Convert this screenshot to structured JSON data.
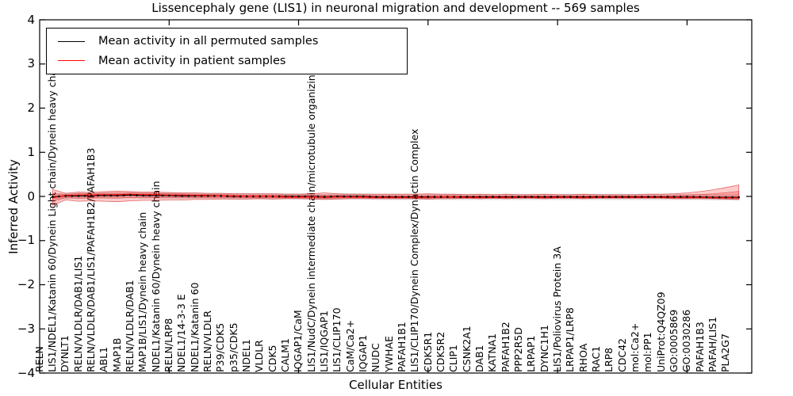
{
  "figure": {
    "title": "Lissencephaly gene (LIS1) in neuronal migration and development -- 569 samples",
    "xlabel": "Cellular Entities",
    "ylabel": "Inferred Activity"
  },
  "chart_data": {
    "type": "line",
    "title": "Lissencephaly gene (LIS1) in neuronal migration and development -- 569 samples",
    "xlabel": "Cellular Entities",
    "ylabel": "Inferred Activity",
    "ylim": [
      -4,
      4
    ],
    "yticks": [
      4,
      3,
      2,
      1,
      0,
      -1,
      -2,
      -3,
      -4
    ],
    "xticks_major": [
      10,
      20,
      30,
      40,
      50
    ],
    "grid": false,
    "legend_position": "upper left",
    "categories": [
      "RELN",
      "LIS1/NDEL1/Katanin 60/Dynein Light chain/Dynein heavy chain",
      "DYNLT1",
      "RELN/VLDLR/DAB1/LIS1",
      "RELN/VLDLR/DAB1/LIS1/PAFAH1B2/PAFAH1B3",
      "ABL1",
      "MAP1B",
      "RELN/VLDLR/DAB1",
      "MAP1B/LIS1/Dynein heavy chain",
      "NDEL1/Katanin 60/Dynein heavy chain",
      "RELN/LRP8",
      "NDEL1/14-3-3 E",
      "NDEL1/Katanin 60",
      "RELN/VLDLR",
      "P39/CDK5",
      "p35/CDK5",
      "NDEL1",
      "VLDLR",
      "CDK5",
      "CALM1",
      "IQGAP1/CaM",
      "LIS1/NudC/Dynein intermediate chain/microtubule organizing center",
      "LIS1/IQGAP1",
      "LIS1/CLIP170",
      "CaM/Ca2+",
      "IQGAP1",
      "NUDC",
      "YWHAE",
      "PAFAH1B1",
      "LIS1/CLIP170/Dynein Complex/Dynactin Complex",
      "CDK5R1",
      "CDK5R2",
      "CLIP1",
      "CSNK2A1",
      "DAB1",
      "KATNA1",
      "PAFAH1B2",
      "PPP2R5D",
      "LRPAP1",
      "DYNC1H1",
      "LIS1/Poliovirus Protein 3A",
      "LRPAP1/LRP8",
      "RHOA",
      "RAC1",
      "LRP8",
      "CDC42",
      "mol:Ca2+",
      "mol:PP1",
      "UniProt:Q4QZ09",
      "GO:0005869",
      "GO:0030286",
      "PAFAH1B3",
      "PAFAH/LIS1",
      "PLA2G7"
    ],
    "series": [
      {
        "name": "Mean activity in all permuted samples",
        "color": "#000000",
        "values": [
          -0.01,
          0.01,
          0.01,
          0.02,
          0.02,
          0.02,
          0.03,
          0.02,
          0.02,
          0.02,
          0.01,
          0.01,
          0.01,
          0.01,
          0.0,
          0.0,
          0.0,
          0.0,
          0.0,
          0.0,
          0.0,
          -0.01,
          0.0,
          0.0,
          0.0,
          -0.01,
          -0.01,
          -0.01,
          -0.01,
          -0.01,
          -0.01,
          -0.01,
          -0.01,
          -0.01,
          -0.01,
          -0.01,
          -0.01,
          -0.01,
          -0.01,
          -0.01,
          -0.01,
          -0.01,
          -0.01,
          -0.01,
          -0.01,
          -0.01,
          -0.01,
          -0.01,
          -0.01,
          -0.01,
          -0.01,
          -0.02,
          -0.02,
          -0.02
        ]
      },
      {
        "name": "Mean activity in patient samples",
        "color": "#ff0000",
        "values": [
          -0.03,
          0.02,
          0.03,
          0.03,
          0.04,
          0.04,
          0.05,
          0.04,
          0.04,
          0.03,
          0.03,
          0.02,
          0.02,
          0.01,
          0.01,
          0.0,
          0.0,
          0.0,
          -0.01,
          -0.01,
          -0.01,
          -0.02,
          -0.01,
          -0.01,
          -0.01,
          -0.02,
          -0.02,
          -0.02,
          -0.02,
          -0.02,
          -0.01,
          -0.01,
          -0.02,
          -0.02,
          -0.02,
          -0.02,
          -0.02,
          -0.02,
          -0.02,
          -0.02,
          -0.02,
          -0.02,
          -0.02,
          -0.02,
          -0.02,
          -0.02,
          -0.02,
          -0.02,
          -0.02,
          -0.02,
          -0.02,
          -0.03,
          -0.03,
          -0.03
        ]
      }
    ],
    "patient_band": {
      "upper": [
        0.16,
        0.07,
        0.1,
        0.09,
        0.11,
        0.12,
        0.11,
        0.1,
        0.1,
        0.09,
        0.08,
        0.08,
        0.07,
        0.07,
        0.06,
        0.06,
        0.06,
        0.06,
        0.05,
        0.05,
        0.06,
        0.08,
        0.06,
        0.05,
        0.05,
        0.05,
        0.05,
        0.05,
        0.05,
        0.06,
        0.05,
        0.05,
        0.04,
        0.05,
        0.04,
        0.05,
        0.04,
        0.04,
        0.05,
        0.04,
        0.04,
        0.05,
        0.04,
        0.04,
        0.04,
        0.04,
        0.05,
        0.05,
        0.06,
        0.08,
        0.11,
        0.15,
        0.2,
        0.26
      ],
      "lower": [
        -0.2,
        -0.08,
        -0.11,
        -0.1,
        -0.11,
        -0.12,
        -0.1,
        -0.09,
        -0.09,
        -0.08,
        -0.08,
        -0.07,
        -0.07,
        -0.06,
        -0.06,
        -0.06,
        -0.05,
        -0.06,
        -0.05,
        -0.05,
        -0.06,
        -0.07,
        -0.06,
        -0.05,
        -0.05,
        -0.05,
        -0.05,
        -0.05,
        -0.05,
        -0.06,
        -0.05,
        -0.05,
        -0.04,
        -0.05,
        -0.04,
        -0.05,
        -0.04,
        -0.04,
        -0.05,
        -0.04,
        -0.04,
        -0.05,
        -0.04,
        -0.04,
        -0.04,
        -0.04,
        -0.04,
        -0.04,
        -0.05,
        -0.05,
        -0.05,
        -0.05,
        -0.06,
        -0.07
      ]
    },
    "permuted_band_halfwidth": 0.07,
    "colors": {
      "patient_line": "#ff0000",
      "permuted_line": "#000000",
      "patient_band_fill": "rgba(255,0,0,0.20)",
      "patient_band_edge": "rgba(204,0,0,0.55)",
      "permuted_band_fill": "rgba(0,0,0,0.12)"
    }
  }
}
